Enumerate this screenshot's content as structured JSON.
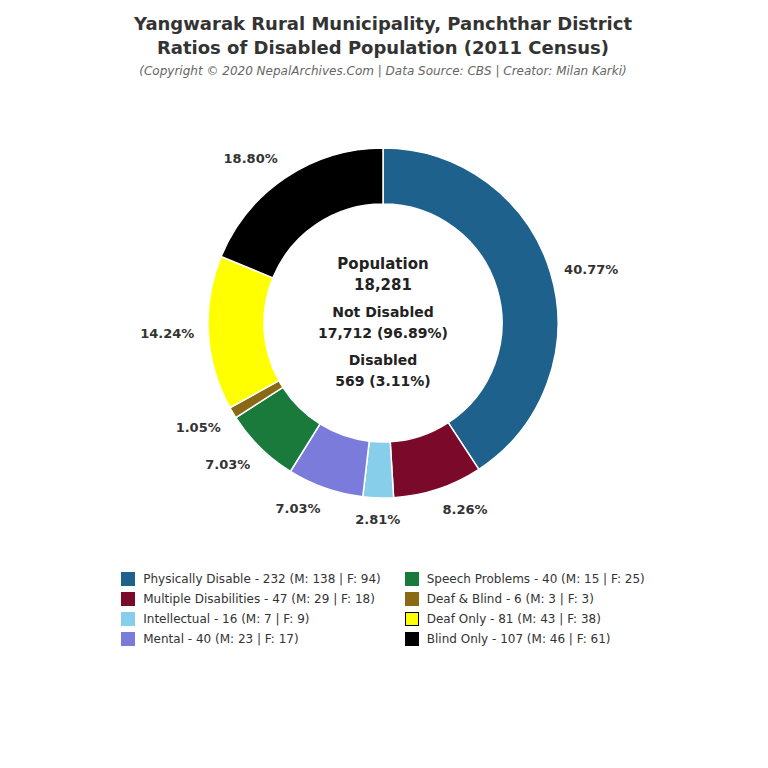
{
  "chart_data": {
    "type": "pie",
    "title": [
      "Yangwarak Rural Municipality, Panchthar District",
      "Ratios of Disabled Population (2011 Census)"
    ],
    "subtitle": "(Copyright © 2020 NepalArchives.Com | Data Source: CBS | Creator: Milan Karki)",
    "categories": [
      "Physically Disable - 232 (M: 138 | F: 94)",
      "Multiple Disabilities - 47 (M: 29 | F: 18)",
      "Intellectual - 16 (M: 7 | F: 9)",
      "Mental - 40 (M: 23 | F: 17)",
      "Speech Problems - 40 (M: 15 | F: 25)",
      "Deaf & Blind - 6 (M: 3 | F: 3)",
      "Deaf Only - 81 (M: 43 | F: 38)",
      "Blind Only - 107 (M: 46 | F: 61)"
    ],
    "values": [
      40.77,
      8.26,
      2.81,
      7.03,
      7.03,
      1.05,
      14.24,
      18.8
    ],
    "value_labels": [
      "40.77%",
      "8.26%",
      "2.81%",
      "7.03%",
      "7.03%",
      "1.05%",
      "14.24%",
      "18.80%"
    ],
    "colors": [
      "#1f618d",
      "#7b0a2a",
      "#87ceeb",
      "#7b7bdb",
      "#1a7a3c",
      "#8b6914",
      "#ffff00",
      "#000000"
    ],
    "annotations": [
      "Population",
      "18,281",
      "Not Disabled",
      "17,712 (96.89%)",
      "Disabled",
      "569 (3.11%)"
    ],
    "data_labels": true,
    "legend": "bottom"
  }
}
